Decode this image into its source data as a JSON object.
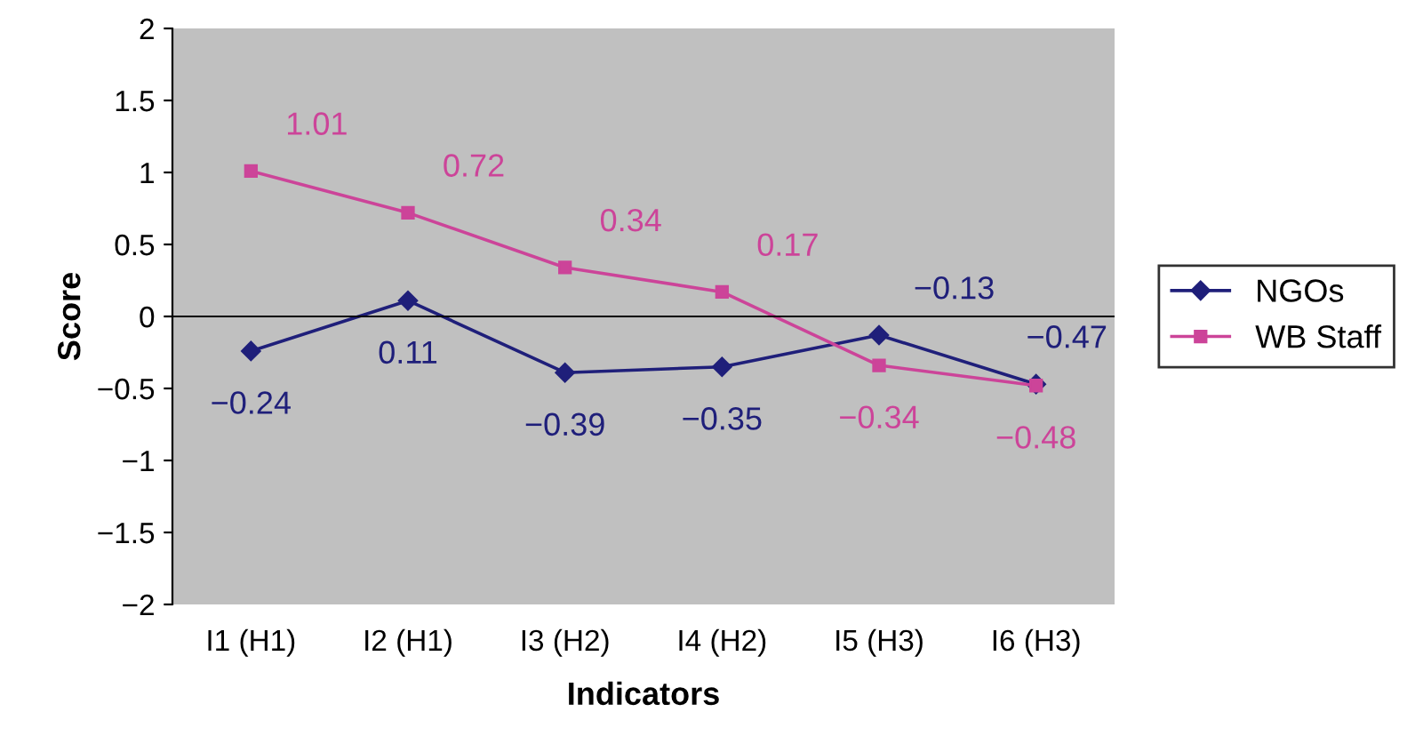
{
  "chart_data": {
    "type": "line",
    "xlabel": "Indicators",
    "ylabel": "Score",
    "categories": [
      "I1 (H1)",
      "I2 (H1)",
      "I3 (H2)",
      "I4 (H2)",
      "I5 (H3)",
      "I6 (H3)"
    ],
    "series": [
      {
        "name": "NGOs",
        "color": "#1f1f7a",
        "marker": "diamond",
        "values": [
          -0.24,
          0.11,
          -0.39,
          -0.35,
          -0.13,
          -0.47
        ]
      },
      {
        "name": "WB Staff",
        "color": "#cc4499",
        "marker": "square",
        "values": [
          1.01,
          0.72,
          0.34,
          0.17,
          -0.34,
          -0.48
        ]
      }
    ],
    "ylim": [
      -2,
      2
    ],
    "yticks": [
      {
        "value": -2,
        "label": "−2"
      },
      {
        "value": -1.5,
        "label": "−1.5"
      },
      {
        "value": -1,
        "label": "−1"
      },
      {
        "value": -0.5,
        "label": "−0.5"
      },
      0,
      0.5,
      1,
      1.5,
      2
    ],
    "ref_lines": [
      {
        "axis": "y",
        "value": 0,
        "color": "#000000"
      }
    ],
    "data_labels": true,
    "legend": "right",
    "grid": false,
    "line_style": "solid"
  }
}
